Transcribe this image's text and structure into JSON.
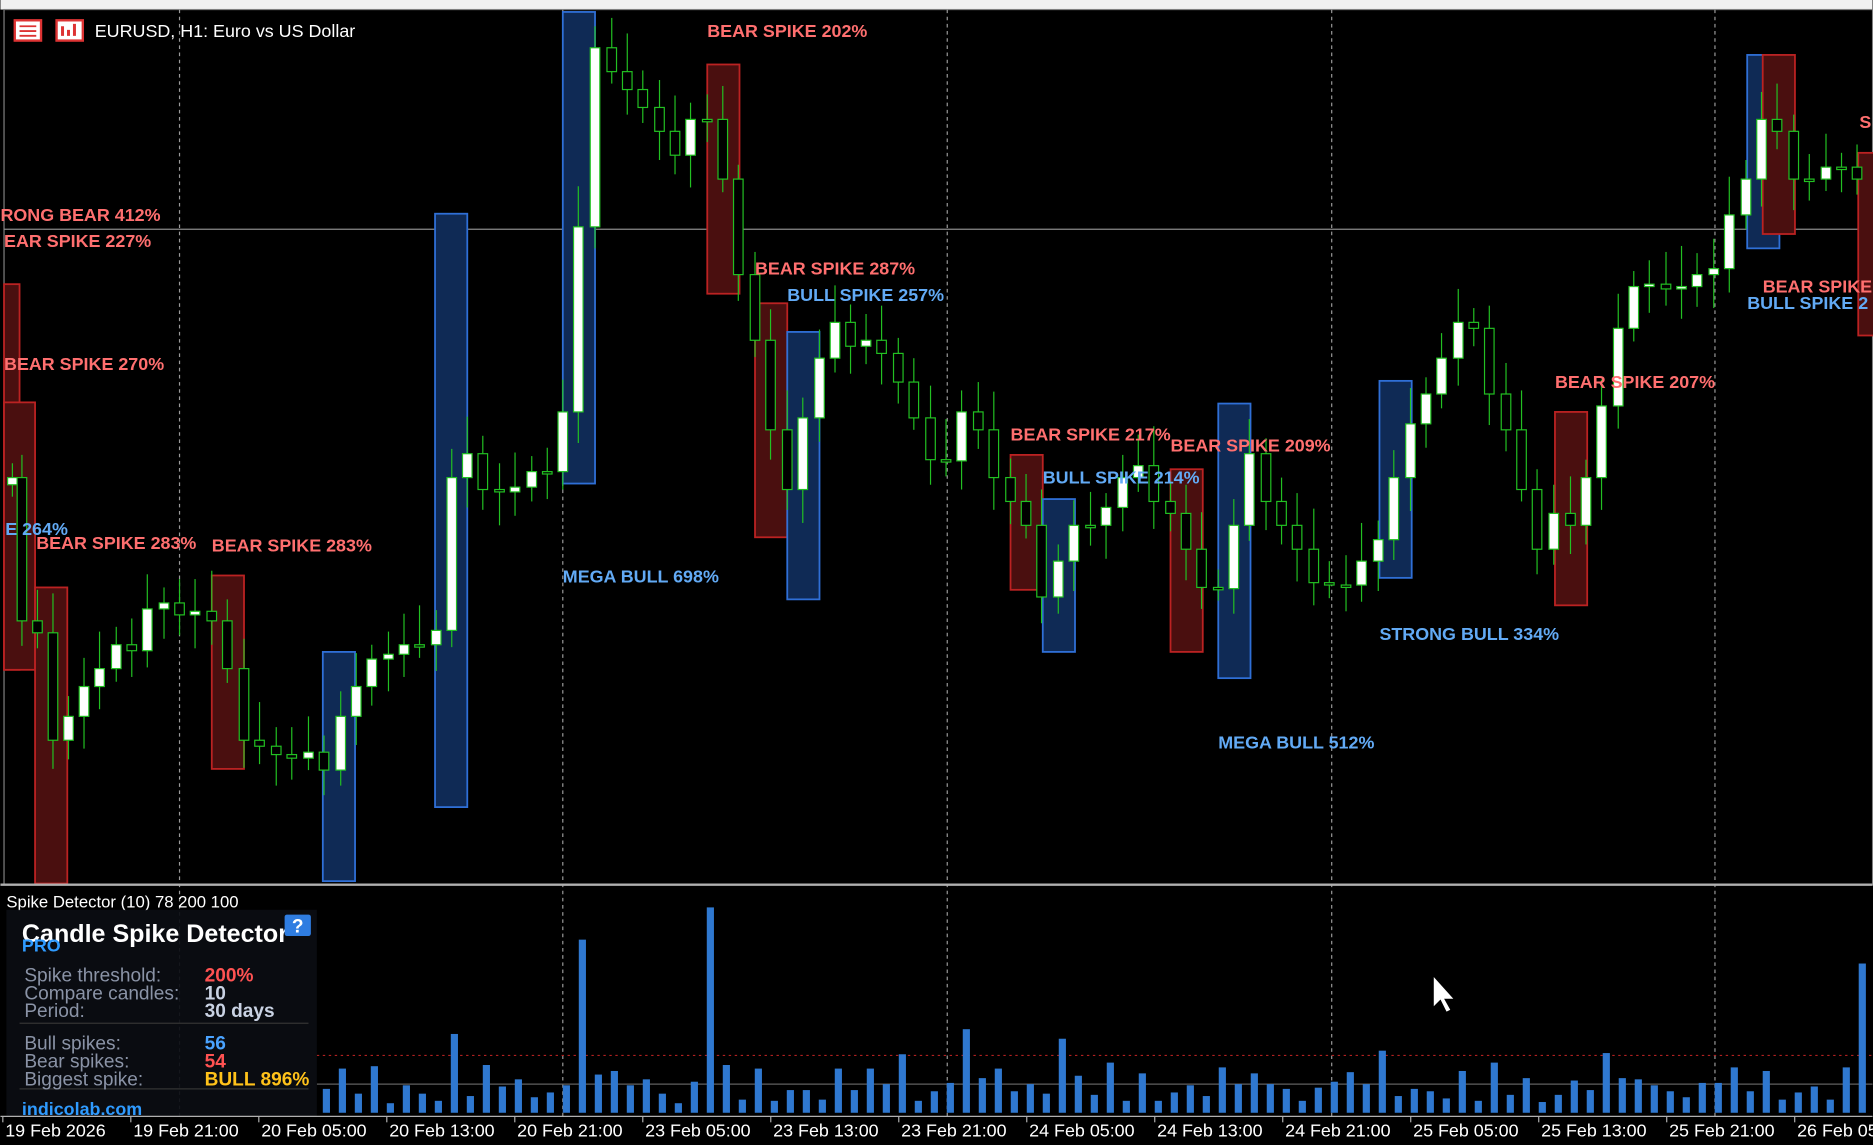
{
  "window": {
    "symbol_title": "EURUSD, H1:  Euro vs US Dollar"
  },
  "annotations": [
    {
      "text": "BEAR SPIKE 202%",
      "color": "#ff6f6f"
    },
    {
      "text": "RONG BEAR 412%",
      "color": "#ff6f6f"
    },
    {
      "text": "EAR SPIKE 227%",
      "color": "#ff6f6f"
    },
    {
      "text": "BEAR SPIKE 270%",
      "color": "#ff6f6f"
    },
    {
      "text": "E 264%",
      "color": "#62aaf5"
    },
    {
      "text": "BEAR SPIKE 283%",
      "color": "#ff6f6f"
    },
    {
      "text": "BEAR SPIKE 283%",
      "color": "#ff6f6f"
    },
    {
      "text": "MEGA BULL 698%",
      "color": "#62aaf5"
    },
    {
      "text": "BEAR SPIKE 287%",
      "color": "#ff6f6f"
    },
    {
      "text": "BULL SPIKE 257%",
      "color": "#62aaf5"
    },
    {
      "text": "BEAR SPIKE 217%",
      "color": "#ff6f6f"
    },
    {
      "text": "BEAR SPIKE 209%",
      "color": "#ff6f6f"
    },
    {
      "text": "BULL SPIKE 214%",
      "color": "#62aaf5"
    },
    {
      "text": "STRONG BULL 334%",
      "color": "#62aaf5"
    },
    {
      "text": "MEGA BULL 512%",
      "color": "#62aaf5"
    },
    {
      "text": "BEAR SPIKE 207%",
      "color": "#ff6f6f"
    },
    {
      "text": "BEAR SPIKE",
      "color": "#ff6f6f"
    },
    {
      "text": "BULL SPIKE 2",
      "color": "#62aaf5"
    },
    {
      "text": "S",
      "color": "#ff6f6f"
    }
  ],
  "indicator": {
    "label": "Spike Detector (10) 78 200 100"
  },
  "panel": {
    "title": "Candle Spike Detector",
    "badge": "PRO",
    "help": "?",
    "rows": [
      {
        "label": "Spike threshold:",
        "value": "200%",
        "color": "#ff5252"
      },
      {
        "label": "Compare candles:",
        "value": "10",
        "color": "#c9d2e3"
      },
      {
        "label": "Period:",
        "value": "30 days",
        "color": "#c9d2e3"
      },
      {
        "label": "Bull spikes:",
        "value": "56",
        "color": "#4aa3ff"
      },
      {
        "label": "Bear spikes:",
        "value": "54",
        "color": "#ff5252"
      },
      {
        "label": "Biggest spike:",
        "value": "BULL 896%",
        "color": "#ffc21a"
      }
    ],
    "footer": "indicolab.com"
  },
  "time_axis": [
    "19 Feb 2026",
    "19 Feb 21:00",
    "20 Feb 05:00",
    "20 Feb 13:00",
    "20 Feb 21:00",
    "23 Feb 05:00",
    "23 Feb 13:00",
    "23 Feb 21:00",
    "24 Feb 05:00",
    "24 Feb 13:00",
    "24 Feb 21:00",
    "25 Feb 05:00",
    "25 Feb 13:00",
    "25 Feb 21:00",
    "26 Feb 05"
  ]
}
